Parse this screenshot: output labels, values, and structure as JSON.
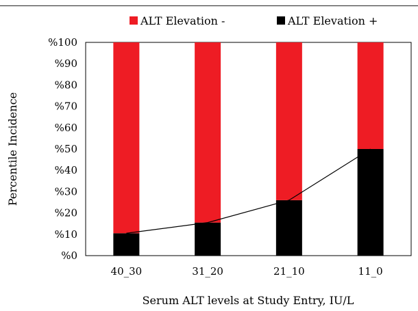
{
  "chart_data": {
    "type": "bar",
    "stacked": true,
    "categories": [
      "40_30",
      "31_20",
      "21_10",
      "11_0"
    ],
    "series": [
      {
        "name": "ALT Elevation +",
        "values": [
          10.5,
          15.5,
          26,
          50
        ],
        "color": "#000000"
      },
      {
        "name": "ALT Elevation -",
        "values": [
          89.5,
          84.5,
          74,
          50
        ],
        "color": "#ee1c24"
      }
    ],
    "trend_line": {
      "series": "ALT Elevation +",
      "color": "#000000"
    },
    "y_ticks": [
      "%0",
      "%10",
      "%20",
      "%30",
      "%40",
      "%50",
      "%60",
      "%70",
      "%80",
      "%90",
      "%100"
    ],
    "ylim": [
      0,
      100
    ],
    "xlabel": "Serum ALT levels at Study Entry, IU/L",
    "ylabel": "Percentile Incidence",
    "legend": {
      "placement": "top",
      "order": [
        "ALT Elevation -",
        "ALT Elevation +"
      ]
    },
    "grid": false
  }
}
